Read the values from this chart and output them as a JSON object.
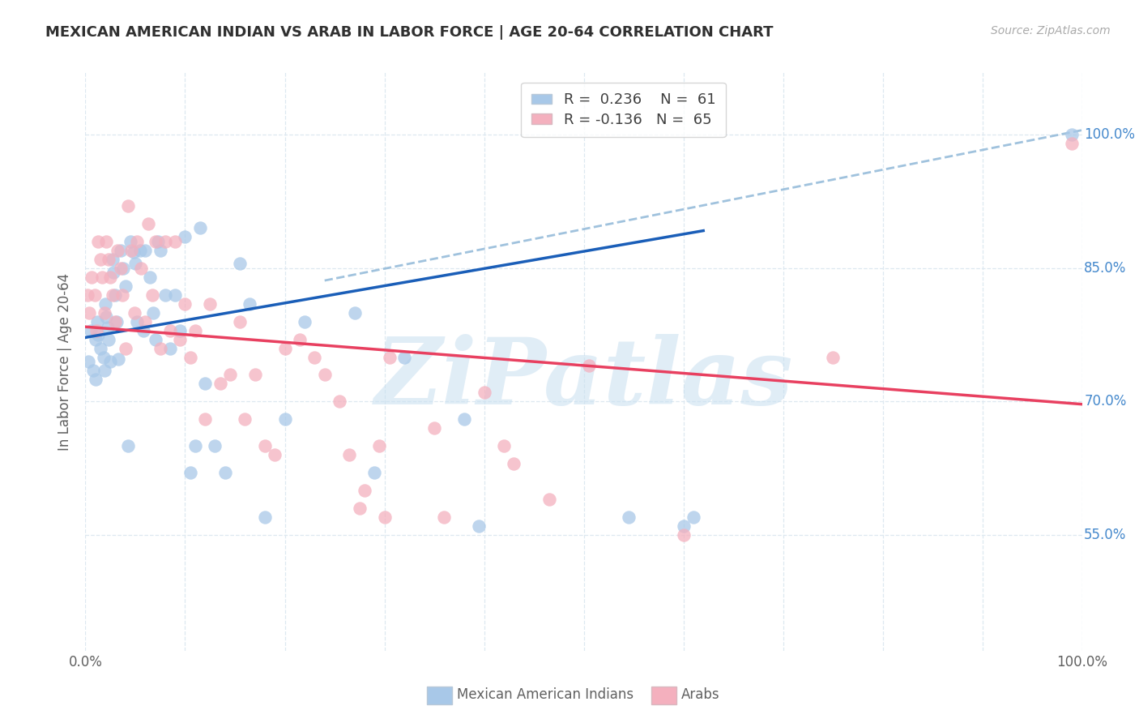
{
  "title": "MEXICAN AMERICAN INDIAN VS ARAB IN LABOR FORCE | AGE 20-64 CORRELATION CHART",
  "source": "Source: ZipAtlas.com",
  "ylabel": "In Labor Force | Age 20-64",
  "yticks": [
    0.55,
    0.7,
    0.85,
    1.0
  ],
  "ytick_labels": [
    "55.0%",
    "70.0%",
    "85.0%",
    "100.0%"
  ],
  "xlim": [
    0.0,
    1.0
  ],
  "ylim": [
    0.42,
    1.07
  ],
  "blue_R": "0.236",
  "blue_N": "61",
  "pink_R": "-0.136",
  "pink_N": "65",
  "blue_fill": "#a8c8e8",
  "pink_fill": "#f4b0be",
  "blue_line_color": "#1a5eb8",
  "pink_line_color": "#e84060",
  "dashed_line_color": "#90b8d8",
  "watermark": "ZiPatlas",
  "watermark_color": "#c8dff0",
  "grid_color": "#dde8f0",
  "title_color": "#303030",
  "axis_label_color": "#606060",
  "right_tick_color": "#4488cc",
  "blue_scatter_x": [
    0.003,
    0.005,
    0.008,
    0.01,
    0.01,
    0.012,
    0.013,
    0.015,
    0.018,
    0.019,
    0.02,
    0.021,
    0.022,
    0.023,
    0.025,
    0.027,
    0.028,
    0.03,
    0.031,
    0.033,
    0.035,
    0.038,
    0.04,
    0.043,
    0.045,
    0.048,
    0.05,
    0.052,
    0.055,
    0.058,
    0.06,
    0.065,
    0.068,
    0.07,
    0.073,
    0.075,
    0.08,
    0.085,
    0.09,
    0.095,
    0.1,
    0.105,
    0.11,
    0.115,
    0.12,
    0.13,
    0.14,
    0.155,
    0.165,
    0.18,
    0.2,
    0.22,
    0.27,
    0.29,
    0.32,
    0.38,
    0.395,
    0.545,
    0.6,
    0.61,
    0.99
  ],
  "blue_scatter_y": [
    0.745,
    0.78,
    0.735,
    0.77,
    0.725,
    0.79,
    0.775,
    0.76,
    0.75,
    0.735,
    0.81,
    0.795,
    0.783,
    0.77,
    0.745,
    0.86,
    0.845,
    0.82,
    0.79,
    0.748,
    0.87,
    0.85,
    0.83,
    0.65,
    0.88,
    0.868,
    0.855,
    0.79,
    0.87,
    0.78,
    0.87,
    0.84,
    0.8,
    0.77,
    0.88,
    0.87,
    0.82,
    0.76,
    0.82,
    0.78,
    0.885,
    0.62,
    0.65,
    0.895,
    0.72,
    0.65,
    0.62,
    0.855,
    0.81,
    0.57,
    0.68,
    0.79,
    0.8,
    0.62,
    0.75,
    0.68,
    0.56,
    0.57,
    0.56,
    0.57,
    1.0
  ],
  "pink_scatter_x": [
    0.002,
    0.004,
    0.006,
    0.009,
    0.011,
    0.013,
    0.015,
    0.017,
    0.019,
    0.021,
    0.023,
    0.025,
    0.027,
    0.03,
    0.032,
    0.035,
    0.037,
    0.04,
    0.043,
    0.046,
    0.049,
    0.052,
    0.056,
    0.06,
    0.063,
    0.067,
    0.07,
    0.075,
    0.08,
    0.085,
    0.09,
    0.095,
    0.1,
    0.105,
    0.11,
    0.12,
    0.125,
    0.135,
    0.145,
    0.155,
    0.16,
    0.17,
    0.18,
    0.19,
    0.2,
    0.215,
    0.23,
    0.24,
    0.255,
    0.265,
    0.275,
    0.28,
    0.295,
    0.3,
    0.305,
    0.35,
    0.36,
    0.4,
    0.42,
    0.43,
    0.465,
    0.505,
    0.6,
    0.75,
    0.99
  ],
  "pink_scatter_y": [
    0.82,
    0.8,
    0.84,
    0.82,
    0.78,
    0.88,
    0.86,
    0.84,
    0.8,
    0.88,
    0.86,
    0.84,
    0.82,
    0.79,
    0.87,
    0.85,
    0.82,
    0.76,
    0.92,
    0.87,
    0.8,
    0.88,
    0.85,
    0.79,
    0.9,
    0.82,
    0.88,
    0.76,
    0.88,
    0.78,
    0.88,
    0.77,
    0.81,
    0.75,
    0.78,
    0.68,
    0.81,
    0.72,
    0.73,
    0.79,
    0.68,
    0.73,
    0.65,
    0.64,
    0.76,
    0.77,
    0.75,
    0.73,
    0.7,
    0.64,
    0.58,
    0.6,
    0.65,
    0.57,
    0.75,
    0.67,
    0.57,
    0.71,
    0.65,
    0.63,
    0.59,
    0.74,
    0.55,
    0.75,
    0.99
  ],
  "blue_line_x": [
    0.0,
    0.62
  ],
  "blue_line_y": [
    0.772,
    0.892
  ],
  "pink_line_x": [
    0.0,
    1.0
  ],
  "pink_line_y": [
    0.784,
    0.697
  ],
  "dashed_line_x": [
    0.24,
    1.0
  ],
  "dashed_line_y": [
    0.836,
    1.005
  ]
}
